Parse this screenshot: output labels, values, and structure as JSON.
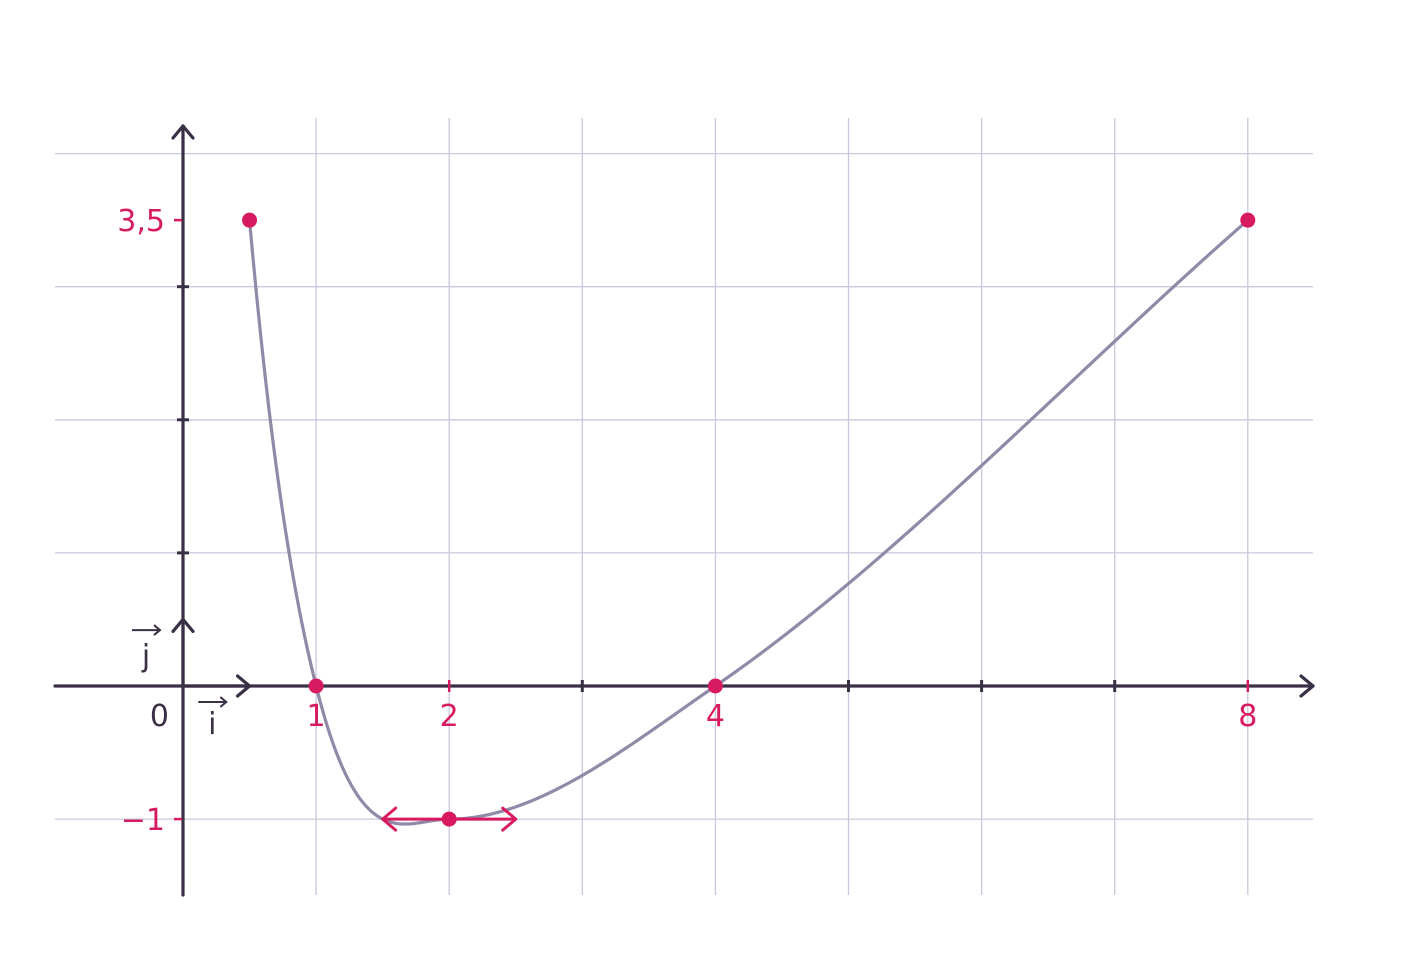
{
  "chart_data": {
    "type": "line",
    "xlim": [
      -1,
      8.5
    ],
    "ylim": [
      -1.6,
      4.2
    ],
    "grid": true,
    "x_tick_labels": [
      {
        "value": 1,
        "label": "1"
      },
      {
        "value": 2,
        "label": "2"
      },
      {
        "value": 4,
        "label": "4"
      },
      {
        "value": 8,
        "label": "8"
      }
    ],
    "y_tick_labels": [
      {
        "value": 3.5,
        "label": "3,5"
      },
      {
        "value": -1,
        "label": "−1"
      }
    ],
    "origin_label": "0",
    "unit_vectors": {
      "i": "i",
      "j": "j"
    },
    "curve": {
      "x_start": 0.5,
      "x_end": 8,
      "samples": [
        {
          "x": 0.5,
          "y": 3.5
        },
        {
          "x": 1,
          "y": 0
        },
        {
          "x": 2,
          "y": -1
        },
        {
          "x": 4,
          "y": 0
        },
        {
          "x": 8,
          "y": 3.5
        }
      ]
    },
    "points": [
      {
        "x": 0.5,
        "y": 3.5
      },
      {
        "x": 1,
        "y": 0
      },
      {
        "x": 2,
        "y": -1
      },
      {
        "x": 4,
        "y": 0
      },
      {
        "x": 8,
        "y": 3.5
      }
    ],
    "tangent": {
      "x": 2,
      "y": -1,
      "half_width": 0.5
    }
  }
}
